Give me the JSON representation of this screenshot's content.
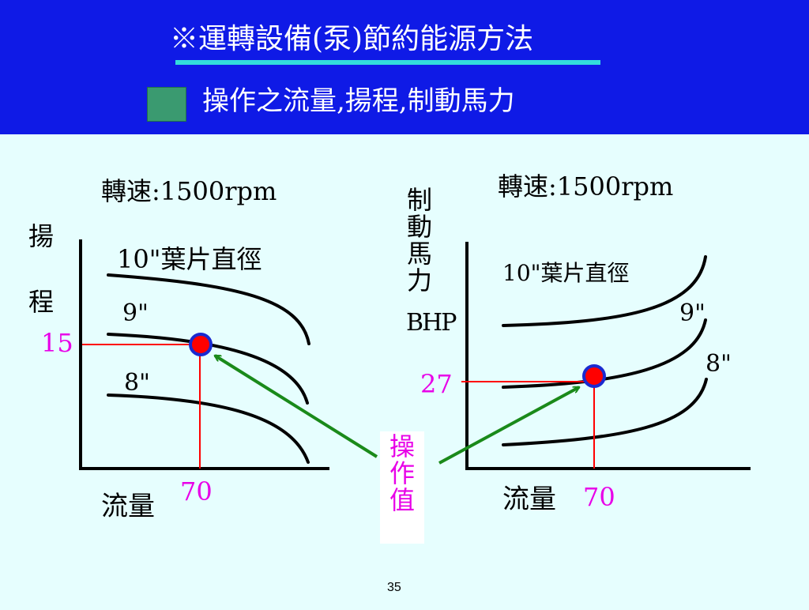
{
  "header": {
    "title": "※運轉設備(泵)節約能源方法",
    "subtitle": "操作之流量,揚程,制動馬力",
    "colors": {
      "background": "#0f1ae6",
      "underline": "#33dcdc",
      "bullet": "#3a9a70"
    }
  },
  "left_panel": {
    "speed": "轉速:1500rpm",
    "y_label_1": "揚",
    "y_label_2": "程",
    "x_label": "流量",
    "curves": [
      "10\"葉片直徑",
      "9\"",
      "8\""
    ],
    "operating_value_y": "15",
    "operating_value_x": "70"
  },
  "right_panel": {
    "speed": "轉速:1500rpm",
    "y_label_chars": [
      "制",
      "動",
      "馬",
      "力"
    ],
    "y_label_unit": "BHP",
    "x_label": "流量",
    "curves": [
      "10\"葉片直徑",
      "9\"",
      "8\""
    ],
    "operating_value_y": "27",
    "operating_value_x": "70"
  },
  "annotation": {
    "label_chars": [
      "操",
      "作",
      "值"
    ],
    "colors": {
      "arrow": "#1a8a1a",
      "label": "#e800e8",
      "guide": "#ff0000",
      "point": "#ff0000",
      "point_ring": "#1a2ad0"
    }
  },
  "footer": {
    "page_number": "35"
  }
}
